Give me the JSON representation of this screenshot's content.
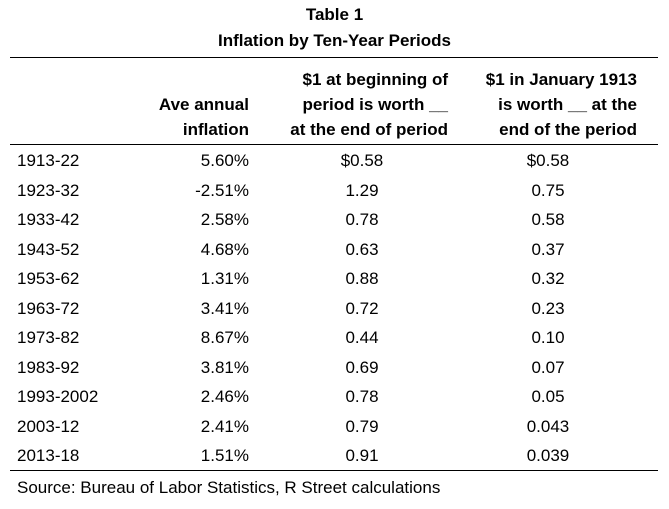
{
  "table": {
    "title": "Table 1",
    "subtitle": "Inflation by Ten-Year Periods",
    "headers": {
      "col1": [
        "Ave annual",
        "inflation"
      ],
      "col2": [
        "$1 at beginning of",
        "period is worth __",
        "at the end of period"
      ],
      "col3": [
        "$1 in January 1913",
        "is worth __ at the",
        "end of the period"
      ]
    },
    "rows": [
      {
        "period": "1913-22",
        "inflation": "5.60%",
        "worth_period": "$0.58",
        "worth_1913": "$0.58"
      },
      {
        "period": "1923-32",
        "inflation": "-2.51%",
        "worth_period": "1.29",
        "worth_1913": "0.75"
      },
      {
        "period": "1933-42",
        "inflation": "2.58%",
        "worth_period": "0.78",
        "worth_1913": "0.58"
      },
      {
        "period": "1943-52",
        "inflation": "4.68%",
        "worth_period": "0.63",
        "worth_1913": "0.37"
      },
      {
        "period": "1953-62",
        "inflation": "1.31%",
        "worth_period": "0.88",
        "worth_1913": "0.32"
      },
      {
        "period": "1963-72",
        "inflation": "3.41%",
        "worth_period": "0.72",
        "worth_1913": "0.23"
      },
      {
        "period": "1973-82",
        "inflation": "8.67%",
        "worth_period": "0.44",
        "worth_1913": "0.10"
      },
      {
        "period": "1983-92",
        "inflation": "3.81%",
        "worth_period": "0.69",
        "worth_1913": "0.07"
      },
      {
        "period": "1993-2002",
        "inflation": "2.46%",
        "worth_period": "0.78",
        "worth_1913": "0.05"
      },
      {
        "period": "2003-12",
        "inflation": "2.41%",
        "worth_period": "0.79",
        "worth_1913": "0.043"
      },
      {
        "period": "2013-18",
        "inflation": "1.51%",
        "worth_period": "0.91",
        "worth_1913": "0.039"
      }
    ],
    "source": "Source: Bureau of Labor Statistics, R Street calculations"
  }
}
